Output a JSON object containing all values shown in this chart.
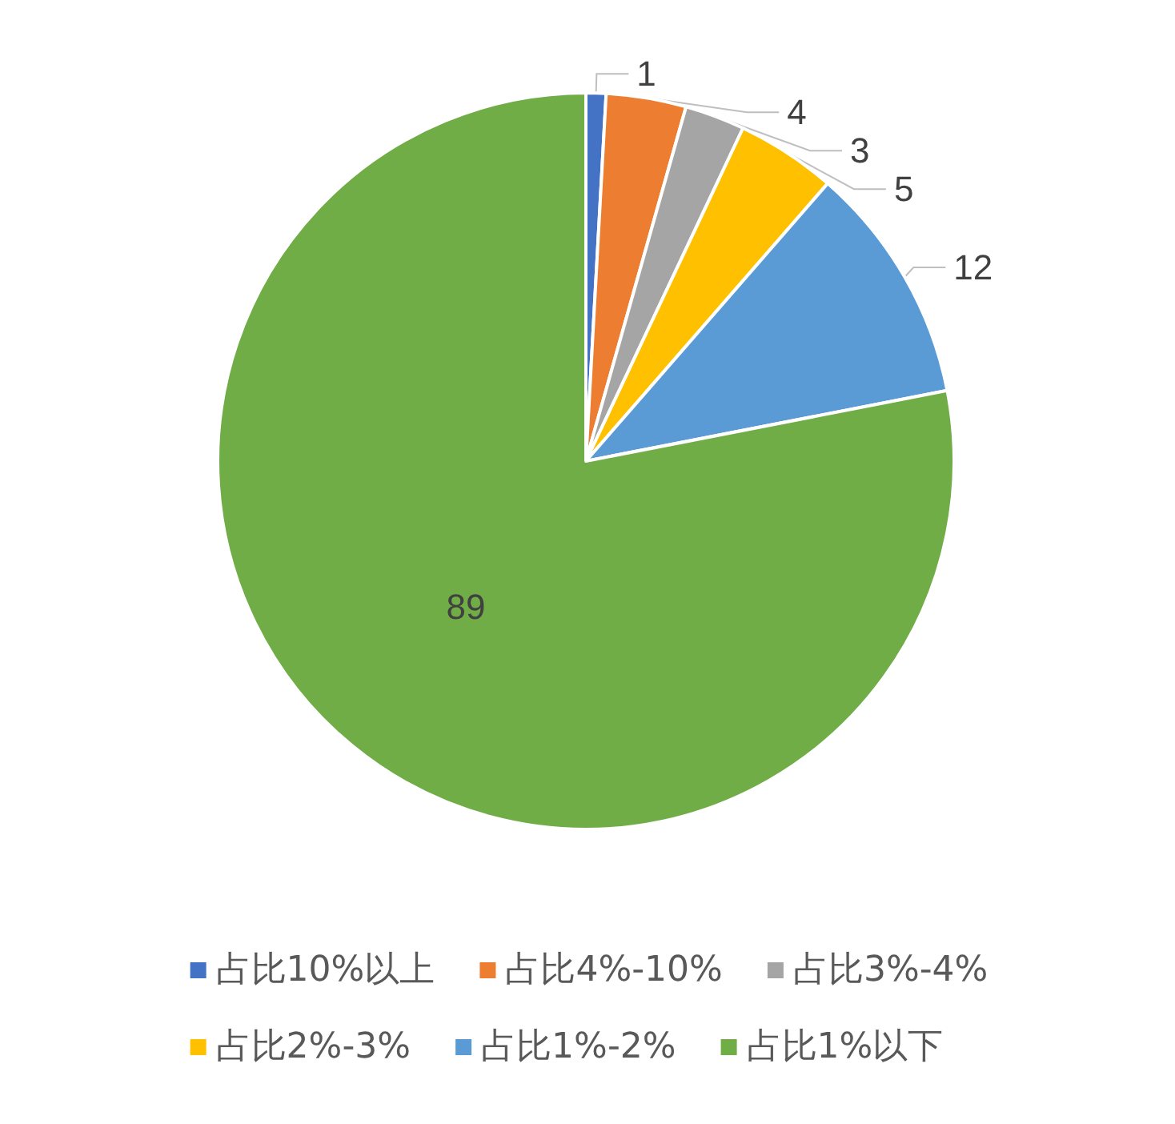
{
  "chart_data": {
    "type": "pie",
    "categories": [
      "占比10%以上",
      "占比4%-10%",
      "占比3%-4%",
      "占比2%-3%",
      "占比1%-2%",
      "占比1%以下"
    ],
    "values": [
      1,
      4,
      3,
      5,
      12,
      89
    ],
    "colors": [
      "#4472c4",
      "#ed7d31",
      "#a5a5a5",
      "#ffc000",
      "#5b9bd5",
      "#70ad47"
    ],
    "data_labels": true,
    "legend": "bottom"
  }
}
